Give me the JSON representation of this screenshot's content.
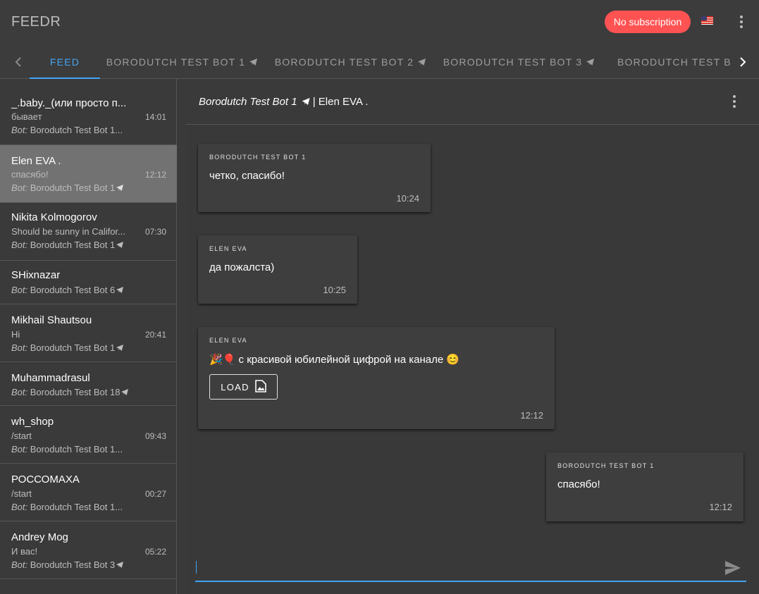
{
  "app": {
    "title": "FEEDR",
    "subscription_label": "No subscription",
    "flag_icon": "us-flag-icon",
    "accent_color": "#42a5f5",
    "alert_color": "#ff5252"
  },
  "tabs": [
    {
      "label": "FEED",
      "active": true
    },
    {
      "label": "BORODUTCH TEST BOT 1",
      "active": false
    },
    {
      "label": "BORODUTCH TEST BOT 2",
      "active": false
    },
    {
      "label": "BORODUTCH TEST BOT 3",
      "active": false
    },
    {
      "label": "BORODUTCH TEST B",
      "active": false
    }
  ],
  "conversations": [
    {
      "name": "_.baby._(или просто п...",
      "message": "бывает",
      "time": "14:01",
      "bot_prefix": "Bot:",
      "bot": "Borodutch Test Bot 1..."
    },
    {
      "name": "Elen EVA .",
      "message": "спасябо!",
      "time": "12:12",
      "bot_prefix": "Bot:",
      "bot": "Borodutch Test Bot 1",
      "active": true
    },
    {
      "name": "Nikita Kolmogorov",
      "message": "Should be sunny in Califor...",
      "time": "07:30",
      "bot_prefix": "Bot:",
      "bot": "Borodutch Test Bot 1"
    },
    {
      "name": "SHixnazar",
      "message": "",
      "time": "",
      "bot_prefix": "Bot:",
      "bot": "Borodutch Test Bot 6"
    },
    {
      "name": "Mikhail Shautsou",
      "message": "Hi",
      "time": "20:41",
      "bot_prefix": "Bot:",
      "bot": "Borodutch Test Bot 1"
    },
    {
      "name": "Muhammadrasul",
      "message": "",
      "time": "",
      "bot_prefix": "Bot:",
      "bot": "Borodutch Test Bot 18"
    },
    {
      "name": "wh_shop",
      "message": "/start",
      "time": "09:43",
      "bot_prefix": "Bot:",
      "bot": "Borodutch Test Bot 1..."
    },
    {
      "name": "РОССОМАХА",
      "message": "/start",
      "time": "00:27",
      "bot_prefix": "Bot:",
      "bot": "Borodutch Test Bot 1..."
    },
    {
      "name": "Andrey Mog",
      "message": "И вас!",
      "time": "05:22",
      "bot_prefix": "Bot:",
      "bot": "Borodutch Test Bot 3"
    }
  ],
  "chat": {
    "bot_name": "Borodutch Test Bot 1",
    "separator": "| Elen EVA .",
    "messages": [
      {
        "author": "BORODUTCH TEST BOT 1",
        "text": "четко, спасибо!",
        "time": "10:24",
        "outgoing": false
      },
      {
        "author": "ELEN EVA",
        "text": "да пожалста)",
        "time": "10:25",
        "outgoing": false
      },
      {
        "author": "ELEN EVA",
        "text": "🎉🎈 с красивой юбилейной цифрой на канале 😊",
        "time": "12:12",
        "outgoing": false,
        "attachment_label": "LOAD"
      },
      {
        "author": "BORODUTCH TEST BOT 1",
        "text": "спасябо!",
        "time": "12:12",
        "outgoing": true
      }
    ],
    "composer_value": ""
  }
}
